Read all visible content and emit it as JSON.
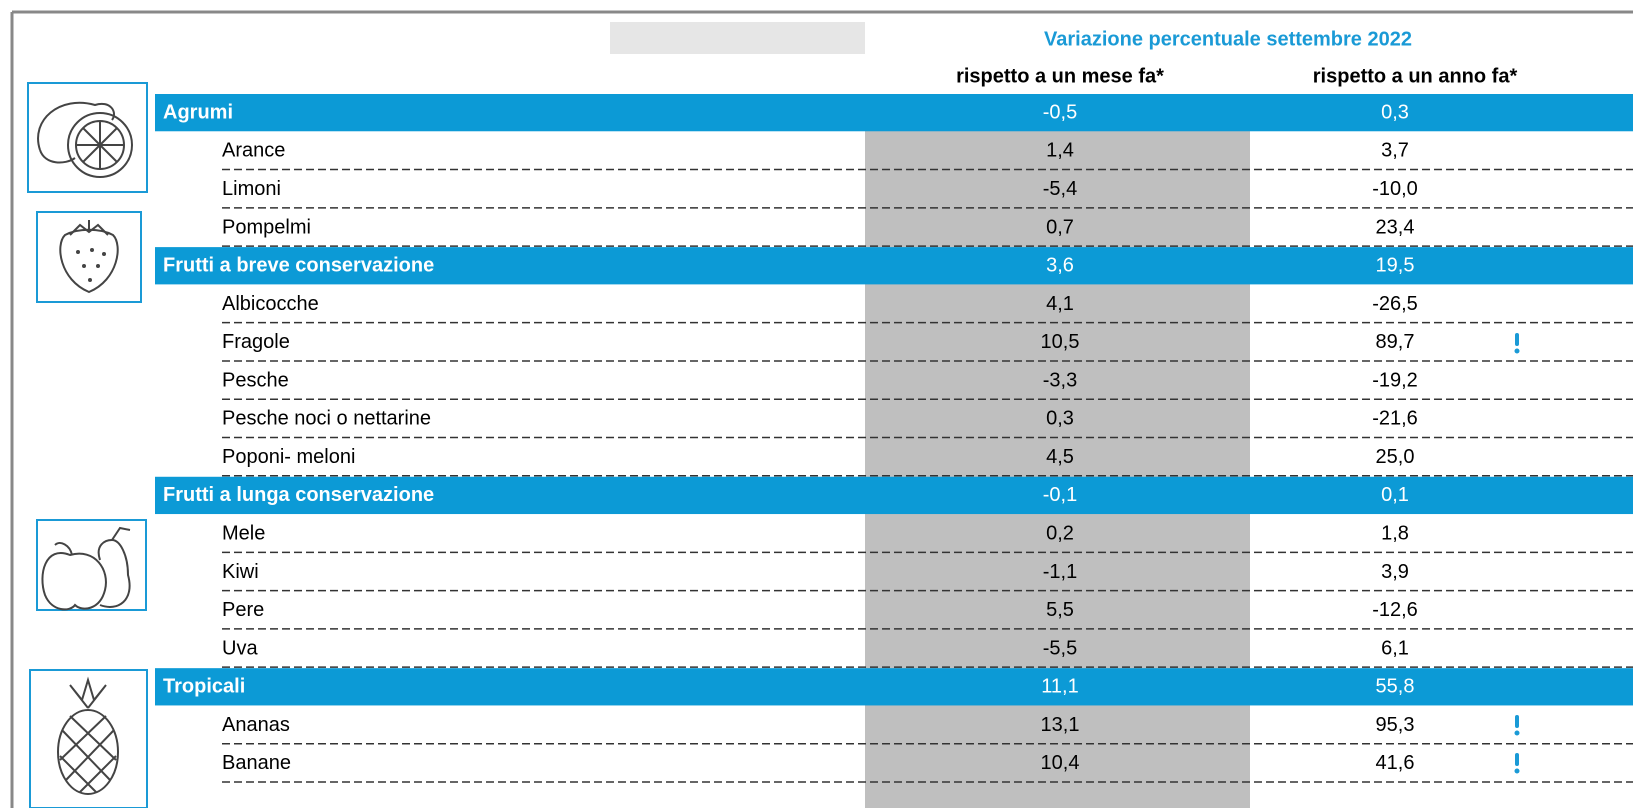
{
  "table": {
    "title": "Variazione percentuale settembre 2022",
    "columns": [
      "rispetto a un mese fa*",
      "rispetto a un anno fa*"
    ],
    "groups": [
      {
        "name": "Agrumi",
        "values": [
          "-0,5",
          "0,3"
        ],
        "items": [
          {
            "name": "Arance",
            "values": [
              "1,4",
              "3,7"
            ]
          },
          {
            "name": "Limoni",
            "values": [
              "-5,4",
              "-10,0"
            ]
          },
          {
            "name": "Pompelmi",
            "values": [
              "0,7",
              "23,4"
            ]
          }
        ]
      },
      {
        "name": "Frutti a breve conservazione",
        "values": [
          "3,6",
          "19,5"
        ],
        "items": [
          {
            "name": "Albicocche",
            "values": [
              "4,1",
              "-26,5"
            ]
          },
          {
            "name": "Fragole",
            "values": [
              "10,5",
              "89,7"
            ]
          },
          {
            "name": "Pesche",
            "values": [
              "-3,3",
              "-19,2"
            ]
          },
          {
            "name": "Pesche noci o nettarine",
            "values": [
              "0,3",
              "-21,6"
            ]
          },
          {
            "name": "Poponi- meloni",
            "values": [
              "4,5",
              "25,0"
            ]
          }
        ]
      },
      {
        "name": "Frutti a lunga conservazione",
        "values": [
          "-0,1",
          "0,1"
        ],
        "items": [
          {
            "name": "Mele",
            "values": [
              "0,2",
              "1,8"
            ]
          },
          {
            "name": "Kiwi",
            "values": [
              "-1,1",
              "3,9"
            ]
          },
          {
            "name": "Pere",
            "values": [
              "5,5",
              "-12,6"
            ]
          },
          {
            "name": "Uva",
            "values": [
              "-5,5",
              "6,1"
            ]
          }
        ]
      },
      {
        "name": "Tropicali",
        "values": [
          "11,1",
          "55,8"
        ],
        "items": [
          {
            "name": "Ananas",
            "values": [
              "13,1",
              "95,3"
            ]
          },
          {
            "name": "Banane",
            "values": [
              "10,4",
              "41,6"
            ]
          }
        ]
      }
    ]
  }
}
